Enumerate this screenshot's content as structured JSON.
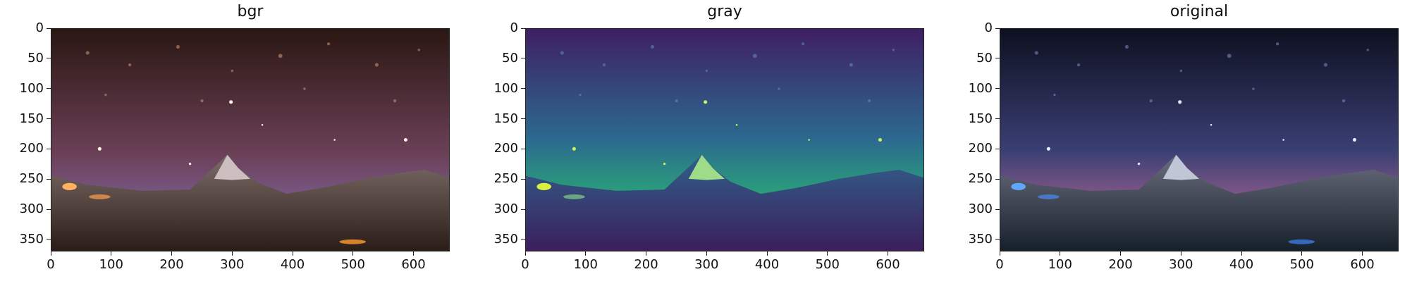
{
  "figure": {
    "panels": [
      {
        "title": "bgr",
        "scene": "bgr-night-mountain"
      },
      {
        "title": "gray",
        "scene": "viridis-night-mountain"
      },
      {
        "title": "original",
        "scene": "rgb-night-mountain"
      }
    ],
    "axes": {
      "x_ticks": [
        "0",
        "100",
        "200",
        "300",
        "400",
        "500",
        "600"
      ],
      "y_ticks": [
        "0",
        "50",
        "100",
        "150",
        "200",
        "250",
        "300",
        "350"
      ],
      "x_range": [
        0,
        660
      ],
      "y_range": [
        0,
        370
      ]
    },
    "colors": {
      "bgr_sky_top": "#2a1712",
      "bgr_sky_mid": "#7a4a6a",
      "bgr_horizon": "#5c7df0",
      "gray_top": "#3f1f63",
      "gray_mid": "#2b6f8f",
      "gray_horizon": "#6ee26a",
      "orig_sky_top": "#0e1020",
      "orig_sky_mid": "#3a3f73",
      "orig_horizon": "#f0a070"
    }
  }
}
